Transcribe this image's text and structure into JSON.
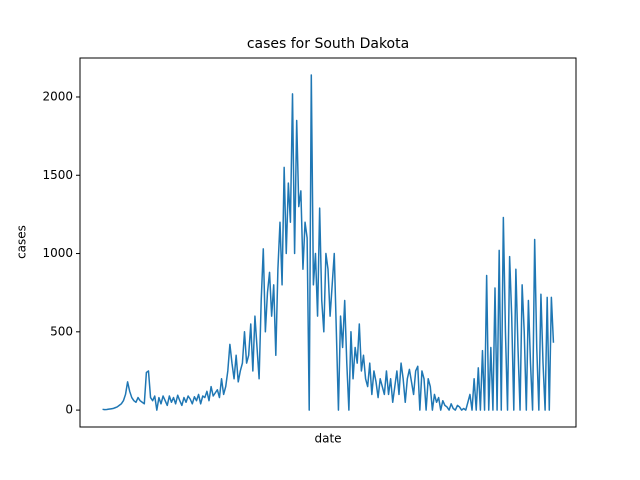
{
  "chart_data": {
    "type": "line",
    "title": "cases for South Dakota",
    "x_label": "date",
    "y_label": "cases",
    "color": "#1f77b4",
    "ylim": [
      -108,
      2249
    ],
    "yticks": [
      0,
      500,
      1000,
      1500,
      2000
    ],
    "values": [
      5,
      3,
      4,
      6,
      8,
      10,
      15,
      20,
      30,
      40,
      60,
      100,
      180,
      120,
      80,
      60,
      50,
      80,
      60,
      50,
      40,
      240,
      250,
      80,
      60,
      90,
      0,
      80,
      40,
      90,
      60,
      30,
      90,
      50,
      80,
      40,
      95,
      60,
      30,
      80,
      50,
      90,
      70,
      40,
      85,
      60,
      100,
      40,
      90,
      80,
      120,
      60,
      150,
      90,
      110,
      130,
      80,
      200,
      100,
      150,
      250,
      420,
      300,
      200,
      350,
      180,
      250,
      300,
      500,
      300,
      350,
      550,
      250,
      600,
      400,
      200,
      700,
      1030,
      500,
      750,
      880,
      600,
      800,
      350,
      900,
      1200,
      800,
      1550,
      1000,
      1450,
      1200,
      2020,
      1000,
      1850,
      1300,
      1400,
      900,
      1200,
      1100,
      0,
      2140,
      800,
      1000,
      600,
      1290,
      700,
      500,
      1000,
      900,
      600,
      800,
      1000,
      500,
      0,
      600,
      400,
      700,
      300,
      0,
      500,
      200,
      400,
      300,
      550,
      250,
      350,
      200,
      150,
      300,
      100,
      250,
      180,
      80,
      200,
      150,
      100,
      250,
      100,
      200,
      50,
      150,
      250,
      100,
      300,
      200,
      50,
      200,
      260,
      180,
      100,
      250,
      280,
      0,
      250,
      200,
      0,
      200,
      150,
      0,
      100,
      50,
      80,
      0,
      60,
      30,
      20,
      0,
      40,
      10,
      0,
      30,
      20,
      0,
      10,
      0,
      50,
      100,
      0,
      200,
      0,
      270,
      0,
      380,
      0,
      860,
      0,
      400,
      0,
      780,
      0,
      1020,
      0,
      1230,
      500,
      0,
      980,
      600,
      0,
      900,
      400,
      0,
      800,
      500,
      0,
      700,
      300,
      0,
      1090,
      400,
      0,
      740,
      300,
      0,
      720,
      0,
      720,
      430
    ]
  }
}
